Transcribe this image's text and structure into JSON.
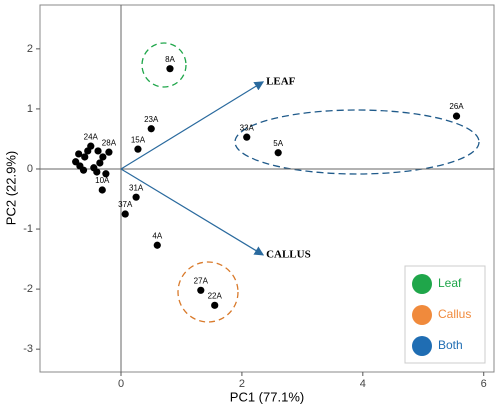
{
  "chart_data": {
    "type": "scatter",
    "x_label": "PC1 (77.1%)",
    "y_label": "PC2 (22.9%)",
    "xlim": [
      -1.34,
      6.17
    ],
    "ylim": [
      -3.38,
      2.73
    ],
    "xticks": [
      0,
      2,
      4,
      6
    ],
    "yticks": [
      -3,
      -2,
      -1,
      0,
      1,
      2
    ],
    "series": [
      {
        "color": "#000000",
        "x": [
          0.81,
          5.55,
          2.08,
          2.6,
          0.5,
          0.28,
          -0.2,
          0.25,
          0.07,
          0.6,
          1.32,
          1.55,
          -0.31,
          -0.5,
          -0.75,
          -0.68,
          -0.6,
          -0.55,
          -0.45,
          -0.4,
          -0.35,
          -0.3,
          -0.25,
          -0.62,
          -0.7,
          -0.38
        ],
        "values": [
          1.67,
          0.88,
          0.53,
          0.27,
          0.67,
          0.33,
          0.28,
          -0.47,
          -0.75,
          -1.27,
          -2.02,
          -2.27,
          -0.35,
          0.38,
          0.12,
          0.05,
          0.2,
          0.3,
          0.02,
          -0.05,
          0.1,
          0.2,
          -0.08,
          -0.02,
          0.25,
          0.3
        ],
        "labels": [
          "8A",
          "26A",
          "33A",
          "5A",
          "23A",
          "15A",
          "28A",
          "31A",
          "37A",
          "4A",
          "27A",
          "22A",
          "10A",
          "24A",
          null,
          null,
          null,
          null,
          null,
          null,
          null,
          null,
          null,
          null,
          null,
          null
        ]
      }
    ],
    "loadings": [
      {
        "label": "LEAF",
        "x": 2.35,
        "y": 1.45
      },
      {
        "label": "CALLUS",
        "x": 2.35,
        "y": -1.43
      }
    ],
    "arrow_color": "#2a6a9e",
    "legend": [
      {
        "label": "Leaf",
        "color": "#1fa64a"
      },
      {
        "label": "Callus",
        "color": "#f08a3c"
      },
      {
        "label": "Both",
        "color": "#1f6db3"
      }
    ]
  }
}
